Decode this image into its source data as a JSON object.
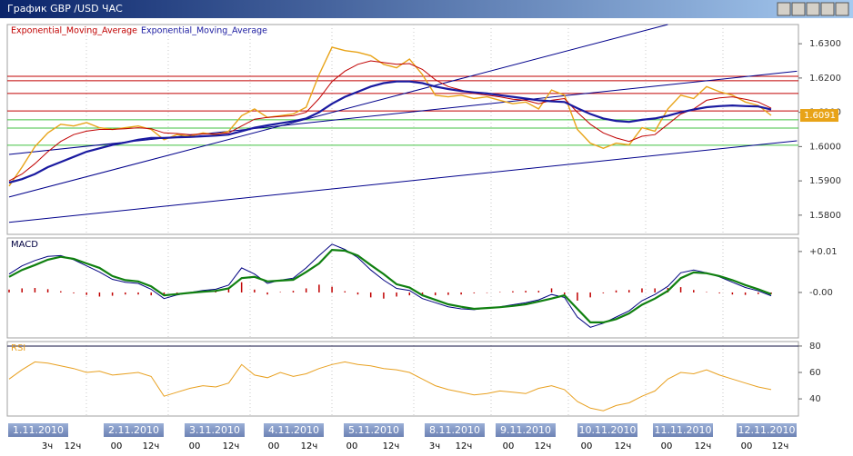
{
  "window_title": "График GBP /USD  ЧАС",
  "chart_data": [
    {
      "type": "line",
      "ylim": [
        1.5744,
        1.6356
      ],
      "yticks": [
        {
          "value": 1.58,
          "label": "1.5800"
        },
        {
          "value": 1.59,
          "label": "1.5900"
        },
        {
          "value": 1.6,
          "label": "1.6000"
        },
        {
          "value": 1.61,
          "label": "1.6100"
        },
        {
          "value": 1.62,
          "label": "1.6200"
        },
        {
          "value": 1.63,
          "label": "1.6300"
        }
      ],
      "series": [
        {
          "color": "#e8a317",
          "values": [
            1.5885,
            1.594,
            1.6,
            1.604,
            1.6065,
            1.606,
            1.607,
            1.6055,
            1.605,
            1.6055,
            1.606,
            1.605,
            1.602,
            1.6035,
            1.603,
            1.604,
            1.6035,
            1.6045,
            1.609,
            1.611,
            1.6085,
            1.609,
            1.6095,
            1.6115,
            1.621,
            1.629,
            1.628,
            1.6275,
            1.6265,
            1.624,
            1.623,
            1.6255,
            1.621,
            1.615,
            1.6145,
            1.615,
            1.614,
            1.6145,
            1.6135,
            1.6125,
            1.613,
            1.611,
            1.6165,
            1.615,
            1.605,
            1.601,
            1.5995,
            1.601,
            1.6005,
            1.6055,
            1.6045,
            1.611,
            1.615,
            1.614,
            1.6175,
            1.616,
            1.615,
            1.613,
            1.612,
            1.6091
          ]
        },
        {
          "name": "Exponential_Moving_Average",
          "color": "#c00000",
          "values": [
            1.59,
            1.592,
            1.595,
            1.5985,
            1.6015,
            1.6035,
            1.6045,
            1.605,
            1.605,
            1.6052,
            1.6055,
            1.6052,
            1.604,
            1.6038,
            1.6035,
            1.6037,
            1.6037,
            1.604,
            1.606,
            1.608,
            1.6085,
            1.6088,
            1.609,
            1.61,
            1.614,
            1.619,
            1.622,
            1.624,
            1.625,
            1.6245,
            1.624,
            1.6242,
            1.6225,
            1.6195,
            1.6175,
            1.6165,
            1.6155,
            1.615,
            1.6145,
            1.6138,
            1.6135,
            1.6125,
            1.6135,
            1.614,
            1.61,
            1.6065,
            1.604,
            1.6025,
            1.6015,
            1.603,
            1.6035,
            1.6065,
            1.6095,
            1.611,
            1.6135,
            1.6142,
            1.6145,
            1.6138,
            1.613,
            1.6112
          ]
        },
        {
          "name": "Exponential_Moving_Average",
          "color": "#1a1aa0",
          "values": [
            1.5895,
            1.5905,
            1.592,
            1.594,
            1.5955,
            1.597,
            1.5985,
            1.5995,
            1.6005,
            1.6012,
            1.602,
            1.6025,
            1.6025,
            1.6027,
            1.6028,
            1.603,
            1.6032,
            1.6035,
            1.6045,
            1.6055,
            1.6062,
            1.6068,
            1.6074,
            1.6082,
            1.61,
            1.6125,
            1.6145,
            1.616,
            1.6175,
            1.6185,
            1.619,
            1.619,
            1.6185,
            1.6175,
            1.6168,
            1.6162,
            1.6158,
            1.6155,
            1.615,
            1.6145,
            1.614,
            1.6135,
            1.6132,
            1.613,
            1.6112,
            1.6095,
            1.6082,
            1.6075,
            1.6072,
            1.6078,
            1.6082,
            1.609,
            1.61,
            1.6108,
            1.6115,
            1.6118,
            1.612,
            1.6118,
            1.6117,
            1.6108
          ]
        }
      ],
      "levels": [
        {
          "value": 1.6205,
          "color": "#c00000"
        },
        {
          "value": 1.6192,
          "color": "#c00000"
        },
        {
          "value": 1.6155,
          "color": "#c00000"
        },
        {
          "value": 1.6104,
          "color": "#c00000"
        },
        {
          "value": 1.6078,
          "color": "#40c040"
        },
        {
          "value": 1.6054,
          "color": "#40c040"
        },
        {
          "value": 1.6004,
          "color": "#40c040"
        }
      ],
      "trendlines": [
        {
          "from": [
            0,
            1.5853
          ],
          "to": [
            51,
            1.6356
          ]
        },
        {
          "from": [
            0,
            1.5779
          ],
          "to": [
            61,
            1.6017
          ]
        },
        {
          "from": [
            0,
            1.5977
          ],
          "to": [
            61,
            1.622
          ]
        }
      ],
      "trendline_color": "#00008b",
      "current_price": {
        "value": 1.6091,
        "label": "1.6091"
      }
    },
    {
      "type": "line",
      "title": "MACD",
      "ylim": [
        -0.0111,
        0.0133
      ],
      "yticks": [
        {
          "value": 0,
          "label": "-0.00"
        },
        {
          "value": 0.01,
          "label": "+0.01"
        }
      ],
      "series": [
        {
          "color": "#000080",
          "values": [
            0.0045,
            0.0065,
            0.0078,
            0.0088,
            0.009,
            0.008,
            0.0065,
            0.005,
            0.0032,
            0.0025,
            0.0022,
            0.0008,
            -0.0015,
            -0.0006,
            0.0,
            0.0005,
            0.0008,
            0.0018,
            0.006,
            0.0045,
            0.0022,
            0.003,
            0.0035,
            0.006,
            0.009,
            0.0118,
            0.0105,
            0.0085,
            0.0055,
            0.003,
            0.001,
            0.0005,
            -0.0015,
            -0.0025,
            -0.0035,
            -0.004,
            -0.0042,
            -0.0038,
            -0.0035,
            -0.003,
            -0.0025,
            -0.0018,
            -0.0005,
            -0.0012,
            -0.006,
            -0.0085,
            -0.0075,
            -0.006,
            -0.0045,
            -0.002,
            -0.0005,
            0.0015,
            0.0048,
            0.0055,
            0.0048,
            0.0038,
            0.0025,
            0.0012,
            0.0004,
            -0.0008
          ]
        },
        {
          "color": "#108010",
          "values": [
            0.0038,
            0.0055,
            0.0067,
            0.008,
            0.0087,
            0.0082,
            0.0071,
            0.006,
            0.004,
            0.003,
            0.0027,
            0.0015,
            -0.0007,
            -0.0004,
            -0.0001,
            0.0002,
            0.0004,
            0.001,
            0.0035,
            0.0038,
            0.0027,
            0.0029,
            0.0031,
            0.005,
            0.0071,
            0.0104,
            0.0102,
            0.009,
            0.0067,
            0.0045,
            0.002,
            0.0012,
            -0.0007,
            -0.0018,
            -0.0029,
            -0.0035,
            -0.004,
            -0.0038,
            -0.0036,
            -0.0033,
            -0.0029,
            -0.0022,
            -0.0015,
            -0.0007,
            -0.004,
            -0.0073,
            -0.0073,
            -0.0065,
            -0.0051,
            -0.003,
            -0.0015,
            0.0004,
            0.0035,
            0.0049,
            0.0047,
            0.004,
            0.003,
            0.0018,
            0.0008,
            -0.0004
          ]
        }
      ],
      "histogram": {
        "color": "#c00000",
        "values": [
          0.0007,
          0.001,
          0.0011,
          0.0008,
          0.0003,
          -0.0002,
          -0.0006,
          -0.001,
          -0.0008,
          -0.0005,
          -0.0005,
          -0.0007,
          -0.0008,
          -0.0002,
          0.0001,
          0.0003,
          0.0004,
          0.0008,
          0.0025,
          0.0007,
          -0.0005,
          0.0001,
          0.0004,
          0.001,
          0.0019,
          0.0014,
          0.0003,
          -0.0005,
          -0.0012,
          -0.0015,
          -0.001,
          -0.0007,
          -0.0008,
          -0.0007,
          -0.0006,
          -0.0005,
          -0.0002,
          0,
          0.0001,
          0.0003,
          0.0004,
          0.0004,
          0.001,
          -0.0005,
          -0.002,
          -0.0012,
          -0.0002,
          0.0005,
          0.0006,
          0.001,
          0.001,
          0.0011,
          0.0013,
          0.0006,
          0.0001,
          -0.0002,
          -0.0005,
          -0.0006,
          -0.0004,
          -0.0004
        ]
      }
    },
    {
      "type": "line",
      "title": "RSI",
      "title_color": "#e8a020",
      "ylim": [
        27,
        83.4
      ],
      "yticks": [
        40,
        60,
        80
      ],
      "series": [
        {
          "color": "#e8a020",
          "values": [
            55,
            62,
            68,
            67,
            65,
            63,
            60,
            61,
            58,
            59,
            60,
            57,
            42,
            45,
            48,
            50,
            49,
            52,
            66,
            58,
            56,
            60,
            57,
            59,
            63,
            66,
            68,
            66,
            65,
            63,
            62,
            60,
            55,
            50,
            47,
            45,
            43,
            44,
            46,
            45,
            44,
            48,
            50,
            47,
            38,
            33,
            31,
            35,
            37,
            42,
            46,
            55,
            60,
            59,
            62,
            58,
            55,
            52,
            49,
            47
          ]
        }
      ],
      "levels": [
        {
          "value": 80,
          "color": "#101040"
        }
      ]
    }
  ],
  "x_axis": {
    "dates": [
      "1.11.2010",
      "2.11.2010",
      "3.11.2010",
      "4.11.2010",
      "5.11.2010",
      "8.11.2010",
      "9.11.2010",
      "10.11.2010",
      "11.11.2010",
      "12.11.2010"
    ],
    "hours": [
      "3ч",
      "12ч",
      "00",
      "12ч",
      "00",
      "12ч",
      "00",
      "12ч",
      "00",
      "12ч",
      "3ч",
      "12ч",
      "00",
      "12ч",
      "00",
      "12ч",
      "00",
      "12ч",
      "00",
      "12ч"
    ]
  }
}
